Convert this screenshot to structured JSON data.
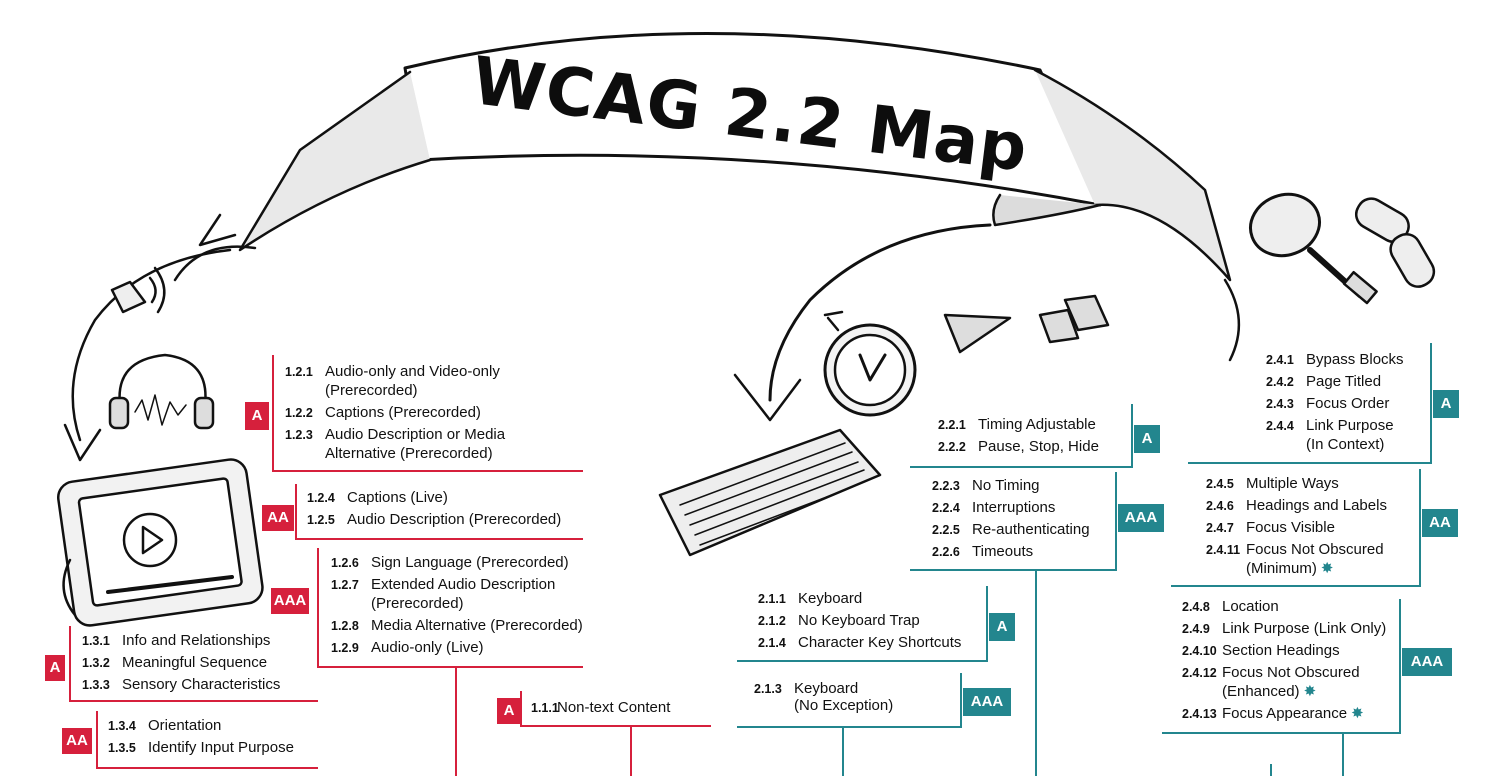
{
  "title": "WCAG 2.2 Map",
  "colors": {
    "perceivable": "#d6203c",
    "operable": "#23868e",
    "ink": "#111111"
  },
  "icons": [
    "speaker-icon",
    "headphones-icon",
    "tablet-video-icon",
    "keyboard-icon",
    "stopwatch-icon",
    "warning-triangle-icon",
    "pause-icon",
    "magnifier-icon",
    "link-chain-icon"
  ],
  "groups": [
    {
      "id": "g121",
      "level": "A",
      "items": [
        {
          "num": "1.2.1",
          "text": "Audio-only and Video-only",
          "text2": "(Prerecorded)"
        },
        {
          "num": "1.2.2",
          "text": "Captions (Prerecorded)"
        },
        {
          "num": "1.2.3",
          "text": "Audio Description or Media",
          "text2": "Alternative (Prerecorded)"
        }
      ]
    },
    {
      "id": "g124",
      "level": "AA",
      "items": [
        {
          "num": "1.2.4",
          "text": "Captions (Live)"
        },
        {
          "num": "1.2.5",
          "text": "Audio Description (Prerecorded)"
        }
      ]
    },
    {
      "id": "g126",
      "level": "AAA",
      "items": [
        {
          "num": "1.2.6",
          "text": "Sign Language (Prerecorded)"
        },
        {
          "num": "1.2.7",
          "text": "Extended Audio Description",
          "text2": "(Prerecorded)"
        },
        {
          "num": "1.2.8",
          "text": "Media Alternative (Prerecorded)"
        },
        {
          "num": "1.2.9",
          "text": "Audio-only (Live)"
        }
      ]
    },
    {
      "id": "g131",
      "level": "A",
      "items": [
        {
          "num": "1.3.1",
          "text": "Info and Relationships"
        },
        {
          "num": "1.3.2",
          "text": "Meaningful Sequence"
        },
        {
          "num": "1.3.3",
          "text": "Sensory Characteristics"
        }
      ]
    },
    {
      "id": "g134",
      "level": "AA",
      "items": [
        {
          "num": "1.3.4",
          "text": "Orientation"
        },
        {
          "num": "1.3.5",
          "text": "Identify Input Purpose"
        }
      ]
    },
    {
      "id": "g111",
      "level": "A",
      "items": [
        {
          "num": "1.1.1",
          "text": "Non-text Content"
        }
      ]
    },
    {
      "id": "g221",
      "level": "A",
      "items": [
        {
          "num": "2.2.1",
          "text": "Timing Adjustable"
        },
        {
          "num": "2.2.2",
          "text": "Pause, Stop, Hide"
        }
      ]
    },
    {
      "id": "g223",
      "level": "AAA",
      "items": [
        {
          "num": "2.2.3",
          "text": "No Timing"
        },
        {
          "num": "2.2.4",
          "text": "Interruptions"
        },
        {
          "num": "2.2.5",
          "text": "Re-authenticating"
        },
        {
          "num": "2.2.6",
          "text": "Timeouts"
        }
      ]
    },
    {
      "id": "g211",
      "level": "A",
      "items": [
        {
          "num": "2.1.1",
          "text": "Keyboard"
        },
        {
          "num": "2.1.2",
          "text": "No Keyboard Trap"
        },
        {
          "num": "2.1.4",
          "text": "Character Key Shortcuts"
        }
      ]
    },
    {
      "id": "g213",
      "level": "AAA",
      "items": [
        {
          "num": "2.1.3",
          "text": "Keyboard",
          "text2": "(No Exception)"
        }
      ]
    },
    {
      "id": "g241",
      "level": "A",
      "items": [
        {
          "num": "2.4.1",
          "text": "Bypass Blocks"
        },
        {
          "num": "2.4.2",
          "text": "Page Titled"
        },
        {
          "num": "2.4.3",
          "text": "Focus Order"
        },
        {
          "num": "2.4.4",
          "text": "Link Purpose",
          "text2": "(In Context)"
        }
      ]
    },
    {
      "id": "g245",
      "level": "AA",
      "items": [
        {
          "num": "2.4.5",
          "text": "Multiple Ways"
        },
        {
          "num": "2.4.6",
          "text": "Headings and Labels"
        },
        {
          "num": "2.4.7",
          "text": "Focus Visible"
        },
        {
          "num": "2.4.11",
          "text": "Focus Not Obscured",
          "text2": "(Minimum)",
          "new": true
        }
      ]
    },
    {
      "id": "g248",
      "level": "AAA",
      "items": [
        {
          "num": "2.4.8",
          "text": "Location"
        },
        {
          "num": "2.4.9",
          "text": "Link Purpose (Link Only)"
        },
        {
          "num": "2.4.10",
          "text": "Section Headings"
        },
        {
          "num": "2.4.12",
          "text": "Focus Not Obscured",
          "text2": "(Enhanced)",
          "new": true
        },
        {
          "num": "2.4.13",
          "text": "Focus Appearance",
          "new": true
        }
      ]
    }
  ]
}
